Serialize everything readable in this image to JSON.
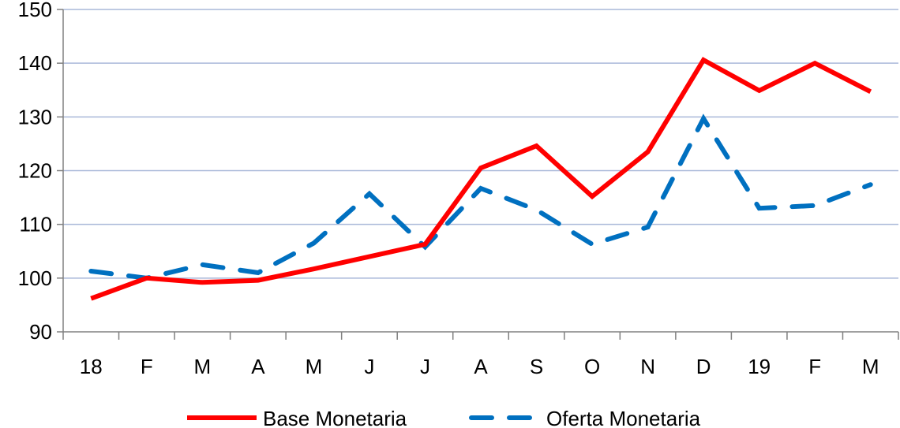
{
  "chart_data": {
    "type": "line",
    "categories": [
      "18",
      "F",
      "M",
      "A",
      "M",
      "J",
      "J",
      "A",
      "S",
      "O",
      "N",
      "D",
      "19",
      "F",
      "M"
    ],
    "series": [
      {
        "name": "Base Monetaria",
        "color": "#ff0000",
        "dash": "solid",
        "values": [
          96.2,
          100.0,
          99.2,
          99.6,
          101.7,
          104.0,
          106.3,
          120.5,
          124.6,
          115.2,
          123.5,
          140.6,
          134.9,
          140.0,
          134.7
        ]
      },
      {
        "name": "Oferta Monetaria",
        "color": "#0070c0",
        "dash": "dashed",
        "values": [
          101.3,
          100.0,
          102.5,
          101.0,
          106.5,
          115.7,
          105.8,
          116.7,
          112.7,
          106.3,
          109.5,
          129.7,
          113.0,
          113.5,
          117.4
        ]
      }
    ],
    "y_ticks": [
      "90",
      "100",
      "110",
      "120",
      "130",
      "140",
      "150"
    ],
    "ylim": [
      90,
      150
    ],
    "grid": true,
    "legend": "bottom"
  }
}
